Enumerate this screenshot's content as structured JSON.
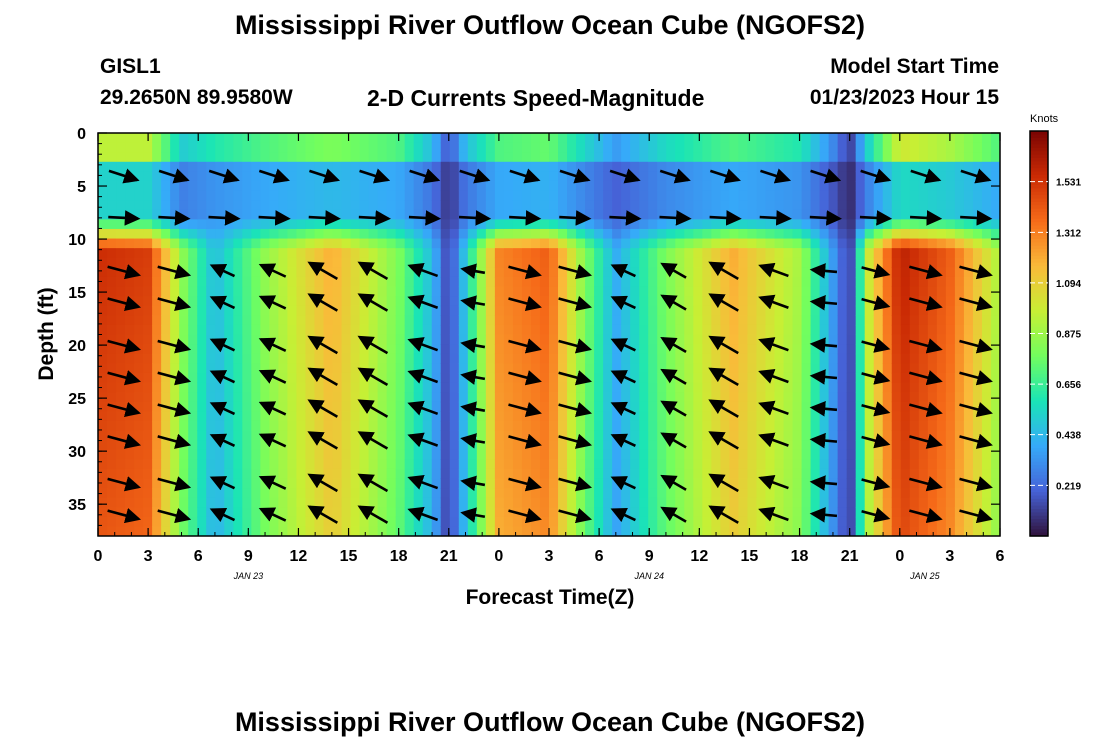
{
  "page": {
    "title_top": "Mississippi River Outflow Ocean Cube (NGOFS2)",
    "title_bottom": "Mississippi River Outflow Ocean Cube (NGOFS2)",
    "station_id": "GISL1",
    "station_coords": "29.2650N  89.9580W",
    "variable_title": "2-D Currents Speed-Magnitude",
    "model_start_label": "Model Start Time",
    "model_start_value": "01/23/2023 Hour 15"
  },
  "chart_data": {
    "type": "heatmap",
    "xlabel": "Forecast Time(Z)",
    "ylabel": "Depth (ft)",
    "x_ticks": [
      "0",
      "3",
      "6",
      "9",
      "12",
      "15",
      "18",
      "21",
      "0",
      "3",
      "6",
      "9",
      "12",
      "15",
      "18",
      "21",
      "0",
      "3",
      "6"
    ],
    "date_labels": [
      {
        "label": "JAN 23",
        "tick_index": 3
      },
      {
        "label": "JAN 24",
        "tick_index": 11
      },
      {
        "label": "JAN 25",
        "tick_index": 16.5
      }
    ],
    "y_ticks": [
      0,
      5,
      10,
      15,
      20,
      25,
      30,
      35
    ],
    "ylim": [
      38,
      0
    ],
    "colorbar": {
      "unit_label": "Knots",
      "ticks": [
        "1.531",
        "1.312",
        "1.094",
        "0.875",
        "0.656",
        "0.438",
        "0.219"
      ],
      "range": [
        0.0,
        1.75
      ],
      "colormap": [
        "#30123b",
        "#4662d7",
        "#36aaf9",
        "#1ae4b6",
        "#72fe5e",
        "#c8ef34",
        "#faba39",
        "#f66b19",
        "#ca2a04",
        "#7a0403"
      ]
    },
    "time_keys_hours": [
      0,
      3,
      5,
      7,
      10,
      14,
      18,
      20,
      21,
      22,
      24,
      27,
      29,
      31,
      34,
      38,
      42,
      44,
      45,
      46,
      48,
      51,
      54
    ],
    "speed_surface_knots": [
      0.95,
      0.95,
      0.5,
      0.6,
      0.7,
      0.8,
      0.7,
      0.45,
      0.15,
      0.45,
      0.7,
      0.75,
      0.55,
      0.35,
      0.55,
      0.7,
      0.6,
      0.3,
      0.1,
      0.5,
      1.0,
      0.9,
      0.7
    ],
    "speed_deep_knots": [
      1.55,
      1.5,
      0.85,
      0.45,
      0.85,
      1.2,
      0.8,
      0.45,
      0.1,
      0.5,
      1.3,
      1.4,
      0.85,
      0.4,
      0.8,
      1.2,
      0.9,
      0.35,
      0.08,
      0.95,
      1.6,
      1.4,
      0.9
    ],
    "arrow_times_hours": [
      1.5,
      4.5,
      7.5,
      10.5,
      13.5,
      16.5,
      19.5,
      22.5,
      25.5,
      28.5,
      31.5,
      34.5,
      37.5,
      40.5,
      43.5,
      46.5,
      49.5,
      52.5
    ],
    "arrow_depths_ft": [
      4,
      8,
      13,
      16,
      20,
      23,
      26,
      29,
      33,
      36
    ],
    "arrow_direction_deg": [
      -15,
      -15,
      155,
      155,
      150,
      150,
      160,
      170,
      -15,
      -15,
      155,
      150,
      150,
      160,
      175,
      -15,
      -15,
      -15
    ],
    "arrow_speed_scale": [
      1.0,
      1.0,
      0.7,
      0.8,
      1.0,
      1.0,
      0.9,
      0.6,
      1.0,
      1.0,
      0.7,
      0.8,
      1.0,
      0.9,
      0.7,
      0.8,
      1.0,
      1.0
    ]
  }
}
